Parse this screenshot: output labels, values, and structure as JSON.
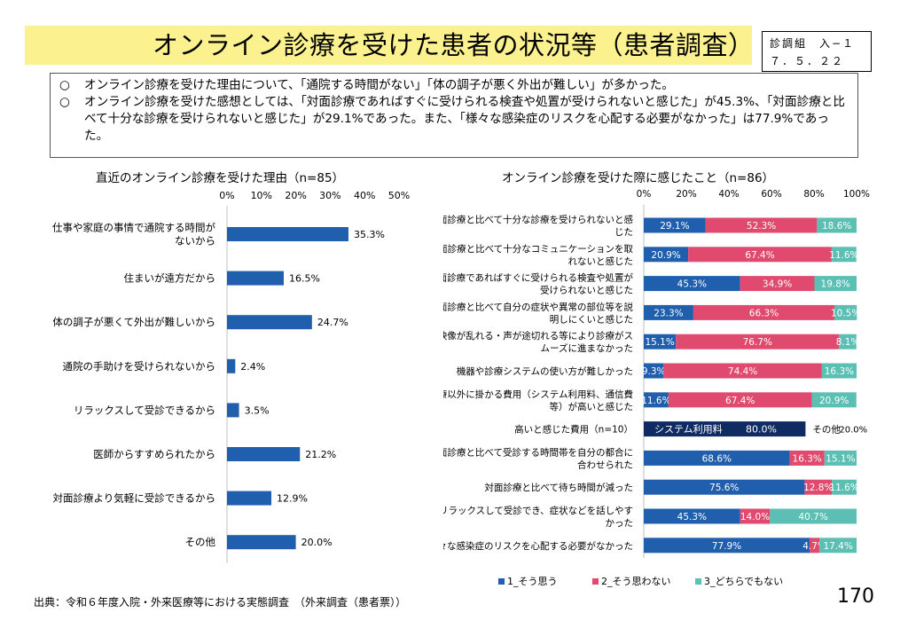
{
  "title": "オンライン診療を受けた患者の状況等（患者調査）",
  "meta": {
    "line1": "診調組　入−１",
    "line2": "７．５．２２"
  },
  "summary": [
    {
      "bullet": "○",
      "text": "オンライン診療を受けた理由について、「通院する時間がない」「体の調子が悪く外出が難しい」が多かった。"
    },
    {
      "bullet": "○",
      "text": "オンライン診療を受けた感想としては、「対面診療であればすぐに受けられる検査や処置が受けられないと感じた」が45.3%、「対面診療と比べて十分な診療を受けられないと感じた」が29.1%であった。また、「様々な感染症のリスクを心配する必要がなかった」は77.9%であった。"
    }
  ],
  "source": "出典：令和６年度入院・外来医療等における実態調査　（外来調査（患者票））",
  "page_number": "170",
  "colors": {
    "agree": "#1f5fad",
    "disagree": "#e04a6e",
    "neutral": "#5bbfb3",
    "cost": "#102a63",
    "bar": "#1f5fad"
  },
  "chart_data": [
    {
      "type": "bar",
      "orientation": "horizontal",
      "title": "直近のオンライン診療を受けた理由（n=85）",
      "xlim": [
        0,
        50
      ],
      "ticks": [
        "0%",
        "10%",
        "20%",
        "30%",
        "40%",
        "50%"
      ],
      "categories": [
        [
          "仕事や家庭の事情で通院する時間が",
          "ないから"
        ],
        [
          "住まいが遠方だから"
        ],
        [
          "体の調子が悪くて外出が難しいから"
        ],
        [
          "通院の手助けを受けられないから"
        ],
        [
          "リラックスして受診できるから"
        ],
        [
          "医師からすすめられたから"
        ],
        [
          "対面診療より気軽に受診できるから"
        ],
        [
          "その他"
        ]
      ],
      "values": [
        35.3,
        16.5,
        24.7,
        2.4,
        3.5,
        21.2,
        12.9,
        20.0
      ],
      "labels": [
        "35.3%",
        "16.5%",
        "24.7%",
        "2.4%",
        "3.5%",
        "21.2%",
        "12.9%",
        "20.0%"
      ]
    },
    {
      "type": "bar",
      "orientation": "horizontal",
      "stacked": "percent",
      "title": "オンライン診療を受けた際に感じたこと（n=86）",
      "xlim": [
        0,
        100
      ],
      "ticks": [
        "0%",
        "20%",
        "40%",
        "60%",
        "80%",
        "100%"
      ],
      "legend": [
        "1_そう思う",
        "2_そう思わない",
        "3_どちらでもない"
      ],
      "legend_position": "bottom",
      "categories": [
        [
          "対面診療と比べて十分な診療を受けられないと感",
          "じた"
        ],
        [
          "対面診療と比べて十分なコミュニケーションを取",
          "れないと感じた"
        ],
        [
          "対面診療であればすぐに受けられる検査や処置が",
          "受けられないと感じた"
        ],
        [
          "対面診療と比べて自分の症状や異常の部位等を説",
          "明しにくいと感じた"
        ],
        [
          "映像が乱れる・声が途切れる等により診療がス",
          "ムーズに進まなかった"
        ],
        [
          "機器や診療システムの使い方が難しかった"
        ],
        [
          "診療以外に掛かる費用（システム利用料、通信費",
          "等）が高いと感じた"
        ],
        [
          "高いと感じた費用（n=10）"
        ],
        [
          "対面診療と比べて受診する時間帯を自分の都合に",
          "合わせられた"
        ],
        [
          "対面診療と比べて待ち時間が減った"
        ],
        [
          "リラックスして受診でき、症状などを話しやす",
          "かった"
        ],
        [
          "様々な感染症のリスクを心配する必要がなかった"
        ]
      ],
      "series": [
        {
          "name": "1_そう思う",
          "values": [
            29.1,
            20.9,
            45.3,
            23.3,
            15.1,
            9.3,
            11.6,
            null,
            68.6,
            75.6,
            45.3,
            77.9
          ],
          "labels": [
            "29.1%",
            "20.9%",
            "45.3%",
            "23.3%",
            "15.1%",
            "9.3%",
            "11.6%",
            null,
            "68.6%",
            "75.6%",
            "45.3%",
            "77.9%"
          ]
        },
        {
          "name": "2_そう思わない",
          "values": [
            52.3,
            67.4,
            34.9,
            66.3,
            76.7,
            74.4,
            67.4,
            null,
            16.3,
            12.8,
            14.0,
            4.7
          ],
          "labels": [
            "52.3%",
            "67.4%",
            "34.9%",
            "66.3%",
            "76.7%",
            "74.4%",
            "67.4%",
            null,
            "16.3%",
            "12.8%",
            "14.0%",
            "4.7%"
          ]
        },
        {
          "name": "3_どちらでもない",
          "values": [
            18.6,
            11.6,
            19.8,
            10.5,
            8.1,
            16.3,
            20.9,
            null,
            15.1,
            11.6,
            40.7,
            17.4
          ],
          "labels": [
            "18.6%",
            "11.6%",
            "19.8%",
            "10.5%",
            "8.1%",
            "16.3%",
            "20.9%",
            null,
            "15.1%",
            "11.6%",
            "40.7%",
            "17.4%"
          ]
        }
      ],
      "cost_breakdown": {
        "row": 7,
        "items": [
          {
            "name": "システム利用料",
            "value": 80.0,
            "label": "80.0%"
          },
          {
            "name": "その他",
            "value": 20.0,
            "label": "20.0%"
          }
        ]
      }
    }
  ]
}
